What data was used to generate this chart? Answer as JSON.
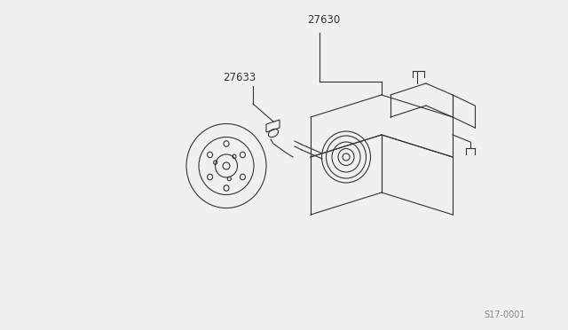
{
  "bg_color": "#f0f0f0",
  "line_color": "#333333",
  "label_27630": "27630",
  "label_27633": "27633",
  "watermark": "S17-0001",
  "title_fontsize": 9,
  "label_fontsize": 8.5,
  "watermark_fontsize": 7
}
